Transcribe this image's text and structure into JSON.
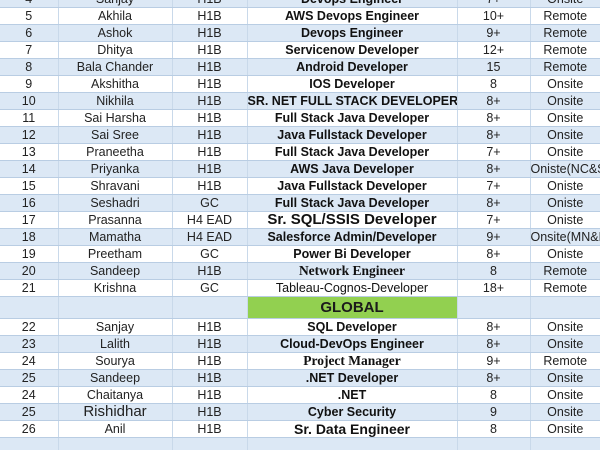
{
  "table": {
    "rows_top": [
      {
        "no": "4",
        "name": "Sanjay",
        "visa": "H1B",
        "role": "Devops Engineer",
        "exp": "7+",
        "location": "Onsite"
      },
      {
        "no": "5",
        "name": "Akhila",
        "visa": "H1B",
        "role": "AWS Devops Engineer",
        "exp": "10+",
        "location": "Remote"
      },
      {
        "no": "6",
        "name": "Ashok",
        "visa": "H1B",
        "role": "Devops Engineer",
        "exp": "9+",
        "location": "Remote"
      },
      {
        "no": "7",
        "name": "Dhitya",
        "visa": "H1B",
        "role": "Servicenow Developer",
        "exp": "12+",
        "location": "Remote"
      },
      {
        "no": "8",
        "name": "Bala Chander",
        "visa": "H1B",
        "role": "Android Developer",
        "exp": "15",
        "location": "Remote"
      },
      {
        "no": "9",
        "name": "Akshitha",
        "visa": "H1B",
        "role": "IOS Developer",
        "exp": "8",
        "location": "Onsite"
      },
      {
        "no": "10",
        "name": "Nikhila",
        "visa": "H1B",
        "role": "SR. NET FULL STACK DEVELOPER",
        "exp": "8+",
        "location": "Onsite"
      },
      {
        "no": "11",
        "name": "Sai Harsha",
        "visa": "H1B",
        "role": "Full Stack Java Developer",
        "exp": "8+",
        "location": "Onsite"
      },
      {
        "no": "12",
        "name": "Sai Sree",
        "visa": "H1B",
        "role": "Java Fullstack Developer",
        "exp": "8+",
        "location": "Onsite"
      },
      {
        "no": "13",
        "name": "Praneetha",
        "visa": "H1B",
        "role": "Full Stack Java Developer",
        "exp": "7+",
        "location": "Onsite"
      },
      {
        "no": "14",
        "name": "Priyanka",
        "visa": "H1B",
        "role": "AWS Java Developer",
        "exp": "8+",
        "location": "Oniste(NC&SC)"
      },
      {
        "no": "15",
        "name": "Shravani",
        "visa": "H1B",
        "role": "Java Fullstack Developer",
        "exp": "7+",
        "location": "Oniste"
      },
      {
        "no": "16",
        "name": "Seshadri",
        "visa": "GC",
        "role": "Full Stack Java Developer",
        "exp": "8+",
        "location": "Oniste"
      },
      {
        "no": "17",
        "name": "Prasanna",
        "visa": "H4 EAD",
        "role": "Sr. SQL/SSIS Developer",
        "exp": "7+",
        "location": "Oniste"
      },
      {
        "no": "18",
        "name": "Mamatha",
        "visa": "H4 EAD",
        "role": "Salesforce Admin/Developer",
        "exp": "9+",
        "location": "Onsite(MN&NC)"
      },
      {
        "no": "19",
        "name": "Preetham",
        "visa": "GC",
        "role": "Power Bi Developer",
        "exp": "8+",
        "location": "Oniste"
      },
      {
        "no": "20",
        "name": "Sandeep",
        "visa": "H1B",
        "role": "Network Engineer",
        "exp": "8",
        "location": "Remote"
      },
      {
        "no": "21",
        "name": "Krishna",
        "visa": "GC",
        "role": "Tableau-Cognos-Developer",
        "exp": "18+",
        "location": "Remote"
      }
    ],
    "section_label": "GLOBAL",
    "rows_global": [
      {
        "no": "22",
        "name": "Sanjay",
        "visa": "H1B",
        "role": "SQL Developer",
        "exp": "8+",
        "location": "Onsite"
      },
      {
        "no": "23",
        "name": "Lalith",
        "visa": "H1B",
        "role": "Cloud-DevOps Engineer",
        "exp": "8+",
        "location": "Onsite"
      },
      {
        "no": "24",
        "name": "Sourya",
        "visa": "H1B",
        "role": "Project Manager",
        "exp": "9+",
        "location": "Remote"
      },
      {
        "no": "25",
        "name": "Sandeep",
        "visa": "H1B",
        "role": ".NET Developer",
        "exp": "8+",
        "location": "Onsite"
      },
      {
        "no": "24",
        "name": "Chaitanya",
        "visa": "H1B",
        "role": ".NET",
        "exp": "8",
        "location": "Onsite"
      },
      {
        "no": "25",
        "name": "Rishidhar",
        "visa": "H1B",
        "role": "Cyber Security",
        "exp": "9",
        "location": "Onsite"
      },
      {
        "no": "26",
        "name": "Anil",
        "visa": "H1B",
        "role": "Sr. Data Engineer",
        "exp": "8",
        "location": "Onsite"
      }
    ]
  },
  "colors": {
    "row_alt": "#dce8f5",
    "row_plain": "#ffffff",
    "section_green": "#92d050",
    "grid_line": "#b9cde3"
  }
}
